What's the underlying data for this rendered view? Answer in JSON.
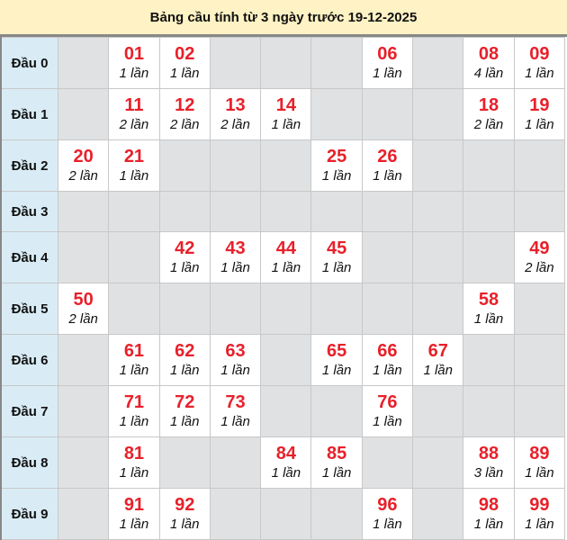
{
  "title": "Bảng cầu tính từ 3 ngày trước 19-12-2025",
  "rows": [
    {
      "label": "Đầu 0",
      "cells": [
        null,
        {
          "num": "01",
          "count": "1 lần"
        },
        {
          "num": "02",
          "count": "1 lần"
        },
        null,
        null,
        null,
        {
          "num": "06",
          "count": "1 lần"
        },
        null,
        {
          "num": "08",
          "count": "4 lần"
        },
        {
          "num": "09",
          "count": "1 lần"
        }
      ]
    },
    {
      "label": "Đầu 1",
      "cells": [
        null,
        {
          "num": "11",
          "count": "2 lần"
        },
        {
          "num": "12",
          "count": "2 lần"
        },
        {
          "num": "13",
          "count": "2 lần"
        },
        {
          "num": "14",
          "count": "1 lần"
        },
        null,
        null,
        null,
        {
          "num": "18",
          "count": "2 lần"
        },
        {
          "num": "19",
          "count": "1 lần"
        }
      ]
    },
    {
      "label": "Đầu 2",
      "cells": [
        {
          "num": "20",
          "count": "2 lần"
        },
        {
          "num": "21",
          "count": "1 lần"
        },
        null,
        null,
        null,
        {
          "num": "25",
          "count": "1 lần"
        },
        {
          "num": "26",
          "count": "1 lần"
        },
        null,
        null,
        null
      ]
    },
    {
      "label": "Đầu 3",
      "cells": [
        null,
        null,
        null,
        null,
        null,
        null,
        null,
        null,
        null,
        null
      ]
    },
    {
      "label": "Đầu 4",
      "cells": [
        null,
        null,
        {
          "num": "42",
          "count": "1 lần"
        },
        {
          "num": "43",
          "count": "1 lần"
        },
        {
          "num": "44",
          "count": "1 lần"
        },
        {
          "num": "45",
          "count": "1 lần"
        },
        null,
        null,
        null,
        {
          "num": "49",
          "count": "2 lần"
        }
      ]
    },
    {
      "label": "Đầu 5",
      "cells": [
        {
          "num": "50",
          "count": "2 lần"
        },
        null,
        null,
        null,
        null,
        null,
        null,
        null,
        {
          "num": "58",
          "count": "1 lần"
        },
        null
      ]
    },
    {
      "label": "Đầu 6",
      "cells": [
        null,
        {
          "num": "61",
          "count": "1 lần"
        },
        {
          "num": "62",
          "count": "1 lần"
        },
        {
          "num": "63",
          "count": "1 lần"
        },
        null,
        {
          "num": "65",
          "count": "1 lần"
        },
        {
          "num": "66",
          "count": "1 lần"
        },
        {
          "num": "67",
          "count": "1 lần"
        },
        null,
        null
      ]
    },
    {
      "label": "Đầu 7",
      "cells": [
        null,
        {
          "num": "71",
          "count": "1 lần"
        },
        {
          "num": "72",
          "count": "1 lần"
        },
        {
          "num": "73",
          "count": "1 lần"
        },
        null,
        null,
        {
          "num": "76",
          "count": "1 lần"
        },
        null,
        null,
        null
      ]
    },
    {
      "label": "Đầu 8",
      "cells": [
        null,
        {
          "num": "81",
          "count": "1 lần"
        },
        null,
        null,
        {
          "num": "84",
          "count": "1 lần"
        },
        {
          "num": "85",
          "count": "1 lần"
        },
        null,
        null,
        {
          "num": "88",
          "count": "3 lần"
        },
        {
          "num": "89",
          "count": "1 lần"
        }
      ]
    },
    {
      "label": "Đầu 9",
      "cells": [
        null,
        {
          "num": "91",
          "count": "1 lần"
        },
        {
          "num": "92",
          "count": "1 lần"
        },
        null,
        null,
        null,
        {
          "num": "96",
          "count": "1 lần"
        },
        null,
        {
          "num": "98",
          "count": "1 lần"
        },
        {
          "num": "99",
          "count": "1 lần"
        }
      ]
    }
  ]
}
